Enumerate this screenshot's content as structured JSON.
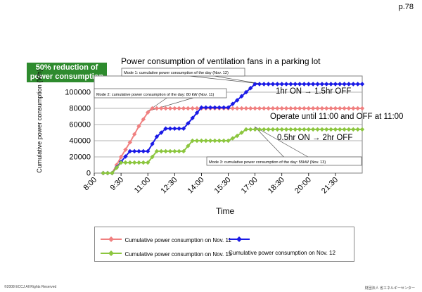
{
  "page": {
    "number": "p.78",
    "copyright": "©2008 ECCJ All Rights Reserved",
    "organization": "財団法人 省エネルギーセンター"
  },
  "badge": {
    "line1": "50% reduction of",
    "line2": "power consumption",
    "color": "#2e8b2e"
  },
  "chart_data": {
    "type": "line",
    "title": "Power consumption of ventilation fans in a parking lot",
    "xlabel": "Time",
    "ylabel": "Cumulative power consumption (Wh)",
    "ylim": [
      0,
      120000
    ],
    "yticks": [
      0,
      20000,
      40000,
      60000,
      80000,
      100000
    ],
    "yticklabels": [
      "0",
      "20000",
      "40000",
      "60000",
      "80000",
      "100000"
    ],
    "xlim": [
      8.0,
      23.0
    ],
    "xticks": [
      8.0,
      9.5,
      11.0,
      12.5,
      14.0,
      15.5,
      17.0,
      18.5,
      20.0,
      21.5
    ],
    "xticklabels": [
      "8:00",
      "9:30",
      "11:00",
      "12:30",
      "14:00",
      "15:30",
      "17:00",
      "18:30",
      "20:00",
      "21:30"
    ],
    "grid": true,
    "series": [
      {
        "name": "Cumulative power consumption on Nov. 11",
        "color": "#f08080",
        "marker": "diamond",
        "points": [
          [
            8.5,
            0
          ],
          [
            9.0,
            0
          ],
          [
            9.5,
            20000
          ],
          [
            10.0,
            38000
          ],
          [
            10.5,
            58000
          ],
          [
            11.0,
            75000
          ],
          [
            11.25,
            80000
          ],
          [
            23.0,
            80000
          ]
        ]
      },
      {
        "name": "Cumulative power consumption on Nov. 12",
        "color": "#1a1ae6",
        "marker": "diamond",
        "points": [
          [
            8.5,
            0
          ],
          [
            9.0,
            0
          ],
          [
            9.5,
            14000
          ],
          [
            10.0,
            27000
          ],
          [
            11.0,
            27000
          ],
          [
            11.5,
            45000
          ],
          [
            12.0,
            55000
          ],
          [
            13.0,
            55000
          ],
          [
            13.5,
            68000
          ],
          [
            14.0,
            81000
          ],
          [
            15.5,
            81000
          ],
          [
            16.0,
            90000
          ],
          [
            16.5,
            100000
          ],
          [
            17.0,
            110000
          ],
          [
            23.0,
            110000
          ]
        ]
      },
      {
        "name": "Cumulative power consumption on Nov. 13",
        "color": "#8cc63f",
        "marker": "diamond",
        "points": [
          [
            8.5,
            0
          ],
          [
            9.0,
            0
          ],
          [
            9.5,
            13000
          ],
          [
            11.0,
            13000
          ],
          [
            11.5,
            27000
          ],
          [
            13.0,
            27000
          ],
          [
            13.5,
            40000
          ],
          [
            15.5,
            40000
          ],
          [
            16.0,
            46000
          ],
          [
            16.5,
            54000
          ],
          [
            23.0,
            54000
          ]
        ]
      }
    ],
    "annotations": [
      {
        "id": "mode1",
        "text": "Mode 1: cumulative power consumption of the day (Nov. 12)"
      },
      {
        "id": "mode2",
        "text": "Mode 2: cumulative power consumption of the day: 80 kW (Nov. 11)"
      },
      {
        "id": "mode3",
        "text": "Mode 3: cumulative power consumption of the day: 55kW (Nov. 13)"
      },
      {
        "id": "a1",
        "text": "1hr ON → 1.5hr OFF"
      },
      {
        "id": "a2",
        "text": "Operate until 11:00 and OFF at 11:00"
      },
      {
        "id": "a3",
        "text": "0.5hr ON → 2hr OFF"
      }
    ]
  }
}
